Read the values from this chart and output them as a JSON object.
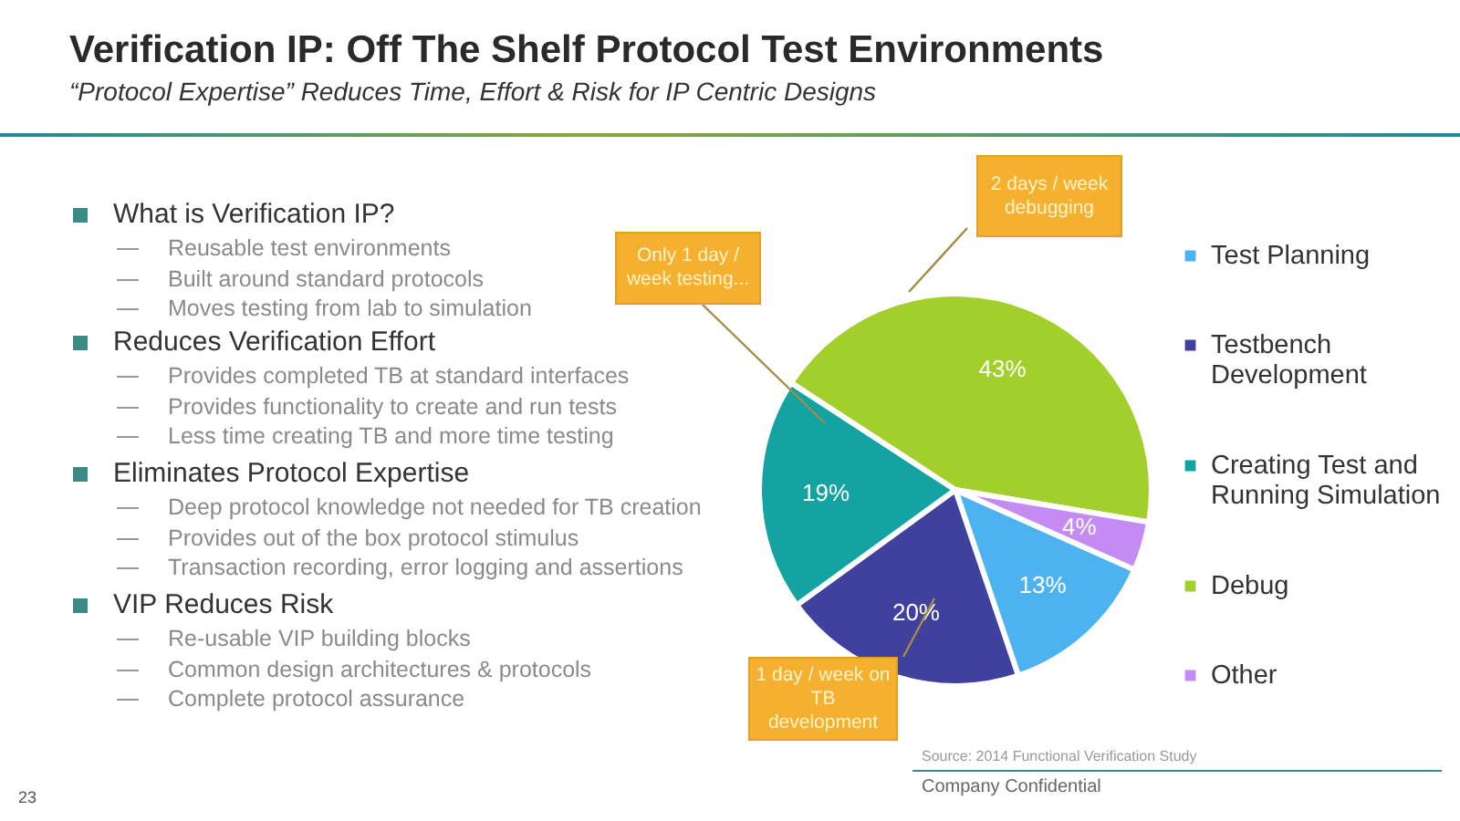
{
  "chart_data": [
    {
      "type": "other",
      "title": "Verification IP: Off The Shelf Protocol Test Environments",
      "subtitle": "“Protocol Expertise” Reduces Time, Effort & Risk for IP Centric Designs"
    },
    {
      "type": "other",
      "title": "What is Verification IP?",
      "annotations": [
        "Reusable test environments",
        "Built around standard protocols",
        "Moves testing from lab to simulation"
      ]
    },
    {
      "type": "other",
      "title": "Reduces Verification Effort",
      "annotations": [
        "Provides completed TB at standard interfaces",
        "Provides functionality to create and run tests",
        "Less time creating TB and more time testing"
      ]
    },
    {
      "type": "other",
      "title": "Eliminates Protocol Expertise",
      "annotations": [
        "Deep protocol knowledge not needed for TB creation",
        "Provides out of the box protocol stimulus",
        "Transaction recording, error logging and assertions"
      ]
    },
    {
      "type": "other",
      "title": "VIP Reduces Risk",
      "annotations": [
        "Re-usable VIP building blocks",
        "Common design architectures & protocols",
        "Complete protocol assurance"
      ]
    },
    {
      "type": "pie",
      "categories": [
        "Test Planning",
        "Testbench Development",
        "Creating Test and Running Simulation",
        "Debug",
        "Other"
      ],
      "values": [
        13,
        20,
        19,
        43,
        4
      ],
      "colors": [
        "#4db3f0",
        "#40409e",
        "#14a3a3",
        "#a3cf2c",
        "#c48cf2"
      ],
      "value_labels": [
        "13%",
        "20%",
        "19%",
        "43%",
        "4%"
      ],
      "legend": "right",
      "annotations": [
        "Only 1 day / week testing...",
        "2 days / week debugging",
        "1 day / week on TB development",
        "Source: 2014 Functional Verification Study",
        "Company Confidential",
        "23"
      ]
    }
  ]
}
